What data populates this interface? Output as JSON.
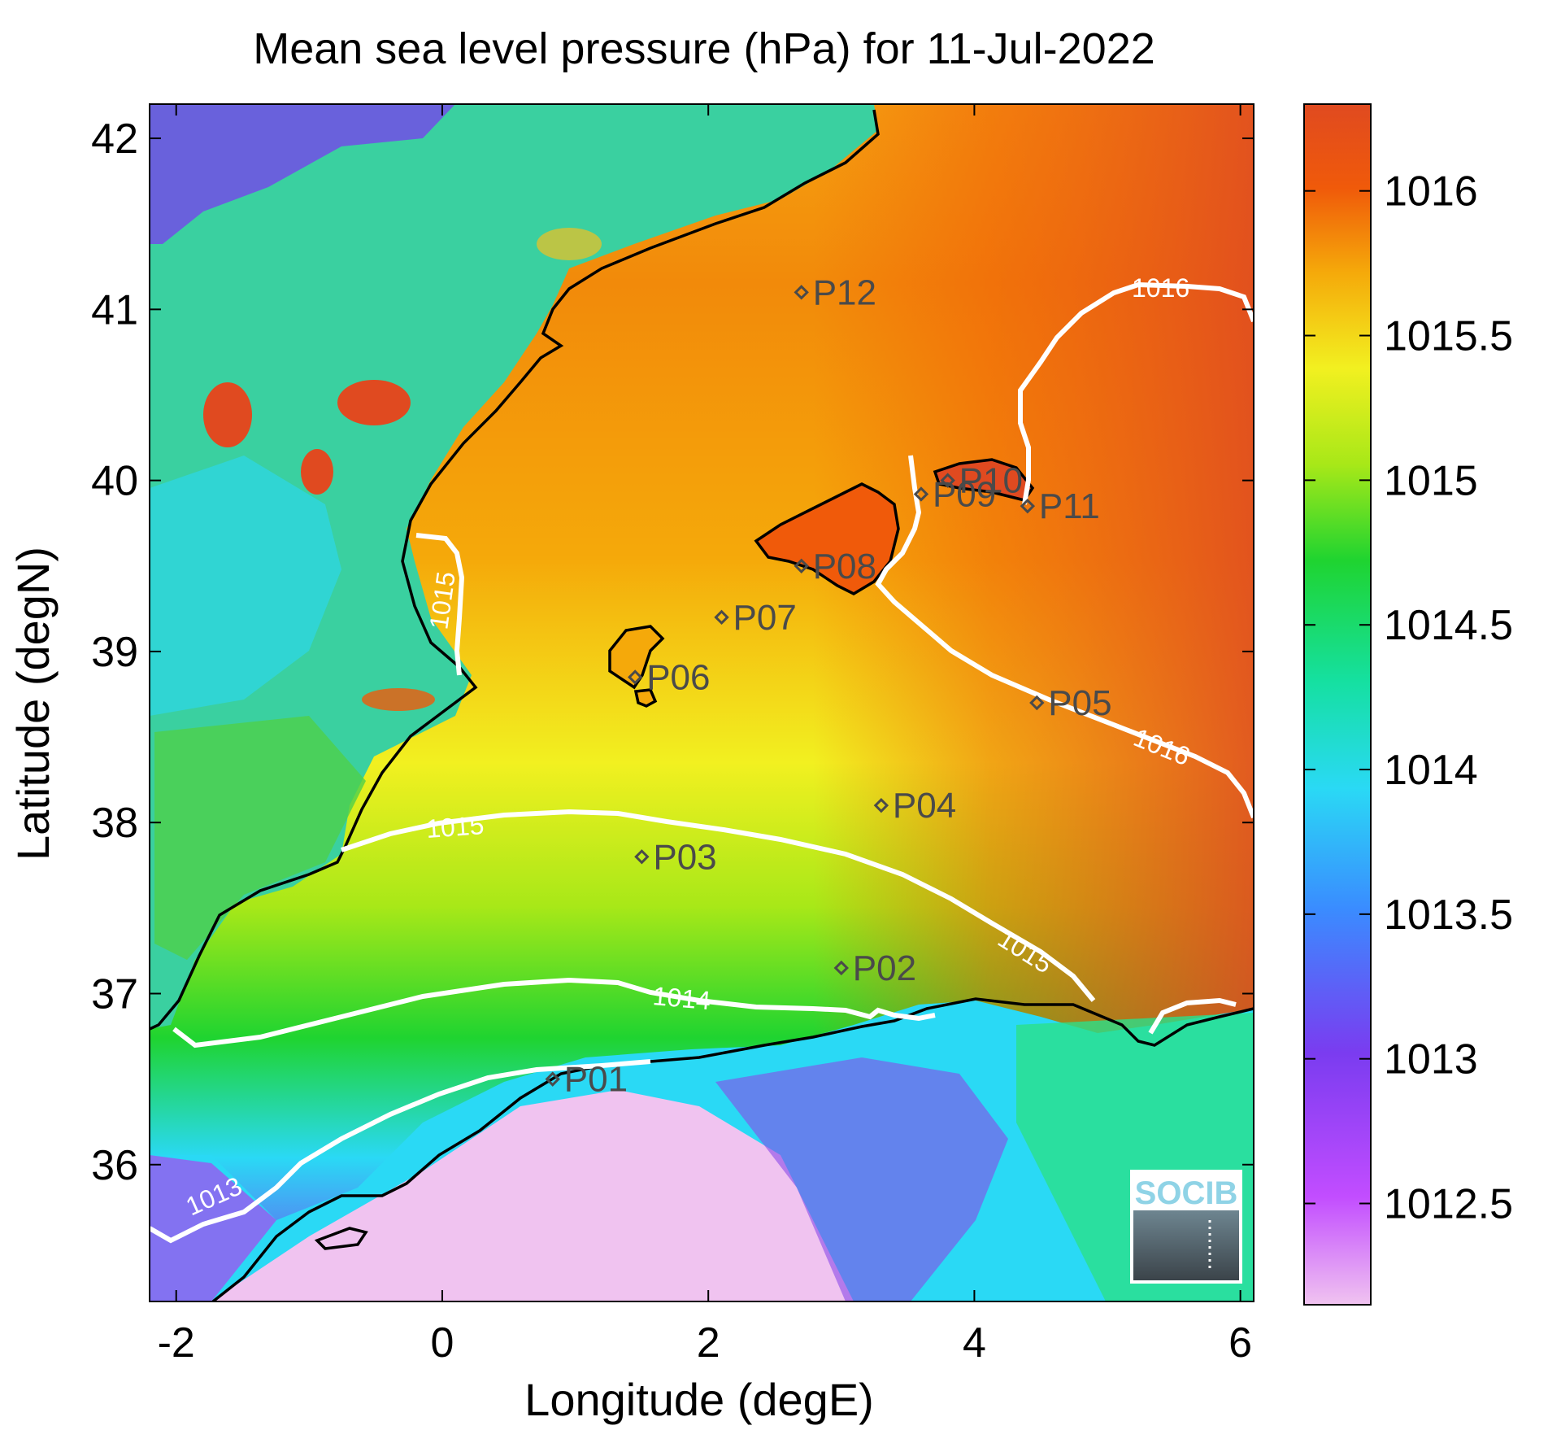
{
  "title": "Mean sea level pressure (hPa) for 11-Jul-2022",
  "xlabel": "Longitude (degE)",
  "ylabel": "Latitude (degN)",
  "map": {
    "lon_range": [
      -2.2,
      6.1
    ],
    "lat_range": [
      35.2,
      42.2
    ],
    "x_ticks": [
      "-2",
      "0",
      "2",
      "4",
      "6"
    ],
    "y_ticks": [
      "42",
      "41",
      "40",
      "39",
      "38",
      "37",
      "36"
    ],
    "x_tick_values": [
      -2,
      0,
      2,
      4,
      6
    ],
    "y_tick_values": [
      42,
      41,
      40,
      39,
      38,
      37,
      36
    ]
  },
  "colorbar": {
    "range": [
      1012.15,
      1016.3
    ],
    "labels": [
      "1016",
      "1015.5",
      "1015",
      "1014.5",
      "1014",
      "1013.5",
      "1013",
      "1012.5"
    ],
    "label_values": [
      1016,
      1015.5,
      1015,
      1014.5,
      1014,
      1013.5,
      1013,
      1012.5
    ],
    "colors": [
      "#f0c3f0",
      "#c24dff",
      "#7a3cf0",
      "#3a8cff",
      "#2ad9f5",
      "#15e0a0",
      "#1fd430",
      "#a8e818",
      "#f2f020",
      "#f5a90a",
      "#f05a0a",
      "#e04a20"
    ]
  },
  "stations": [
    {
      "name": "P01",
      "lon": 0.83,
      "lat": 36.5
    },
    {
      "name": "P02",
      "lon": 3.0,
      "lat": 37.15
    },
    {
      "name": "P03",
      "lon": 1.5,
      "lat": 37.8
    },
    {
      "name": "P04",
      "lon": 3.3,
      "lat": 38.1
    },
    {
      "name": "P05",
      "lon": 4.47,
      "lat": 38.7
    },
    {
      "name": "P06",
      "lon": 1.45,
      "lat": 38.85
    },
    {
      "name": "P07",
      "lon": 2.1,
      "lat": 39.2
    },
    {
      "name": "P08",
      "lon": 2.7,
      "lat": 39.5
    },
    {
      "name": "P09",
      "lon": 3.6,
      "lat": 39.92
    },
    {
      "name": "P10",
      "lon": 3.8,
      "lat": 40.0
    },
    {
      "name": "P11",
      "lon": 4.4,
      "lat": 39.85
    },
    {
      "name": "P12",
      "lon": 2.7,
      "lat": 41.1
    }
  ],
  "contour_labels": {
    "c1013": "1013",
    "c1014": "1014",
    "c1015a": "1015",
    "c1015b": "1015",
    "c1015c": "1015",
    "c1016a": "1016",
    "c1016b": "1016"
  },
  "logo": {
    "text": "SOCIB"
  },
  "colors": {
    "background": "#ffffff",
    "contour": "#ffffff",
    "coastline": "#000000",
    "station_marker": "#4a4a4a"
  }
}
